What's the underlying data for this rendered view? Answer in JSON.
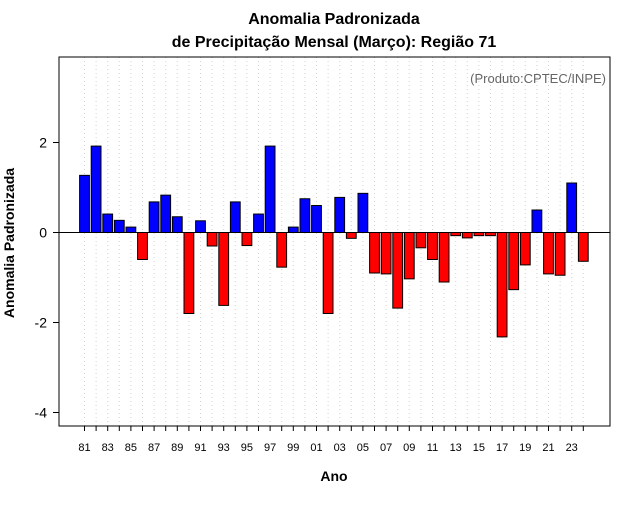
{
  "chart_data": {
    "type": "bar",
    "title_line1": "Anomalia Padronizada",
    "title_line2": "de Precipitação Mensal (Março): Região 71",
    "credit": "(Produto:CPTEC/INPE)",
    "xlabel": "Ano",
    "ylabel": "Anomalia Padronizada",
    "ylim": [
      -4.3,
      3.9
    ],
    "yticks": [
      -4,
      -2,
      0,
      2
    ],
    "grid": "vertical dotted lines at each year",
    "positive_color": "#0000ff",
    "negative_color": "#ff0000",
    "x_tick_labels": [
      "81",
      "83",
      "85",
      "87",
      "89",
      "91",
      "93",
      "95",
      "97",
      "99",
      "01",
      "03",
      "05",
      "07",
      "09",
      "11",
      "13",
      "15",
      "17",
      "19",
      "21",
      "23"
    ],
    "categories": [
      "1981",
      "1982",
      "1983",
      "1984",
      "1985",
      "1986",
      "1987",
      "1988",
      "1989",
      "1990",
      "1991",
      "1992",
      "1993",
      "1994",
      "1995",
      "1996",
      "1997",
      "1998",
      "1999",
      "2000",
      "2001",
      "2002",
      "2003",
      "2004",
      "2005",
      "2006",
      "2007",
      "2008",
      "2009",
      "2010",
      "2011",
      "2012",
      "2013",
      "2014",
      "2015",
      "2016",
      "2017",
      "2018",
      "2019",
      "2020",
      "2021",
      "2022",
      "2023",
      "2024"
    ],
    "values": [
      1.27,
      1.92,
      0.41,
      0.27,
      0.12,
      -0.6,
      0.68,
      0.83,
      0.35,
      -1.8,
      0.26,
      -0.3,
      -1.62,
      0.68,
      -0.29,
      0.41,
      1.92,
      -0.77,
      0.12,
      0.75,
      0.6,
      -1.8,
      0.78,
      -0.13,
      0.87,
      -0.9,
      -0.92,
      -1.68,
      -1.03,
      -0.34,
      -0.6,
      -1.1,
      -0.07,
      -0.12,
      -0.07,
      -0.07,
      -2.32,
      -1.27,
      -0.72,
      0.5,
      -0.92,
      -0.95,
      1.1,
      -0.64
    ]
  }
}
